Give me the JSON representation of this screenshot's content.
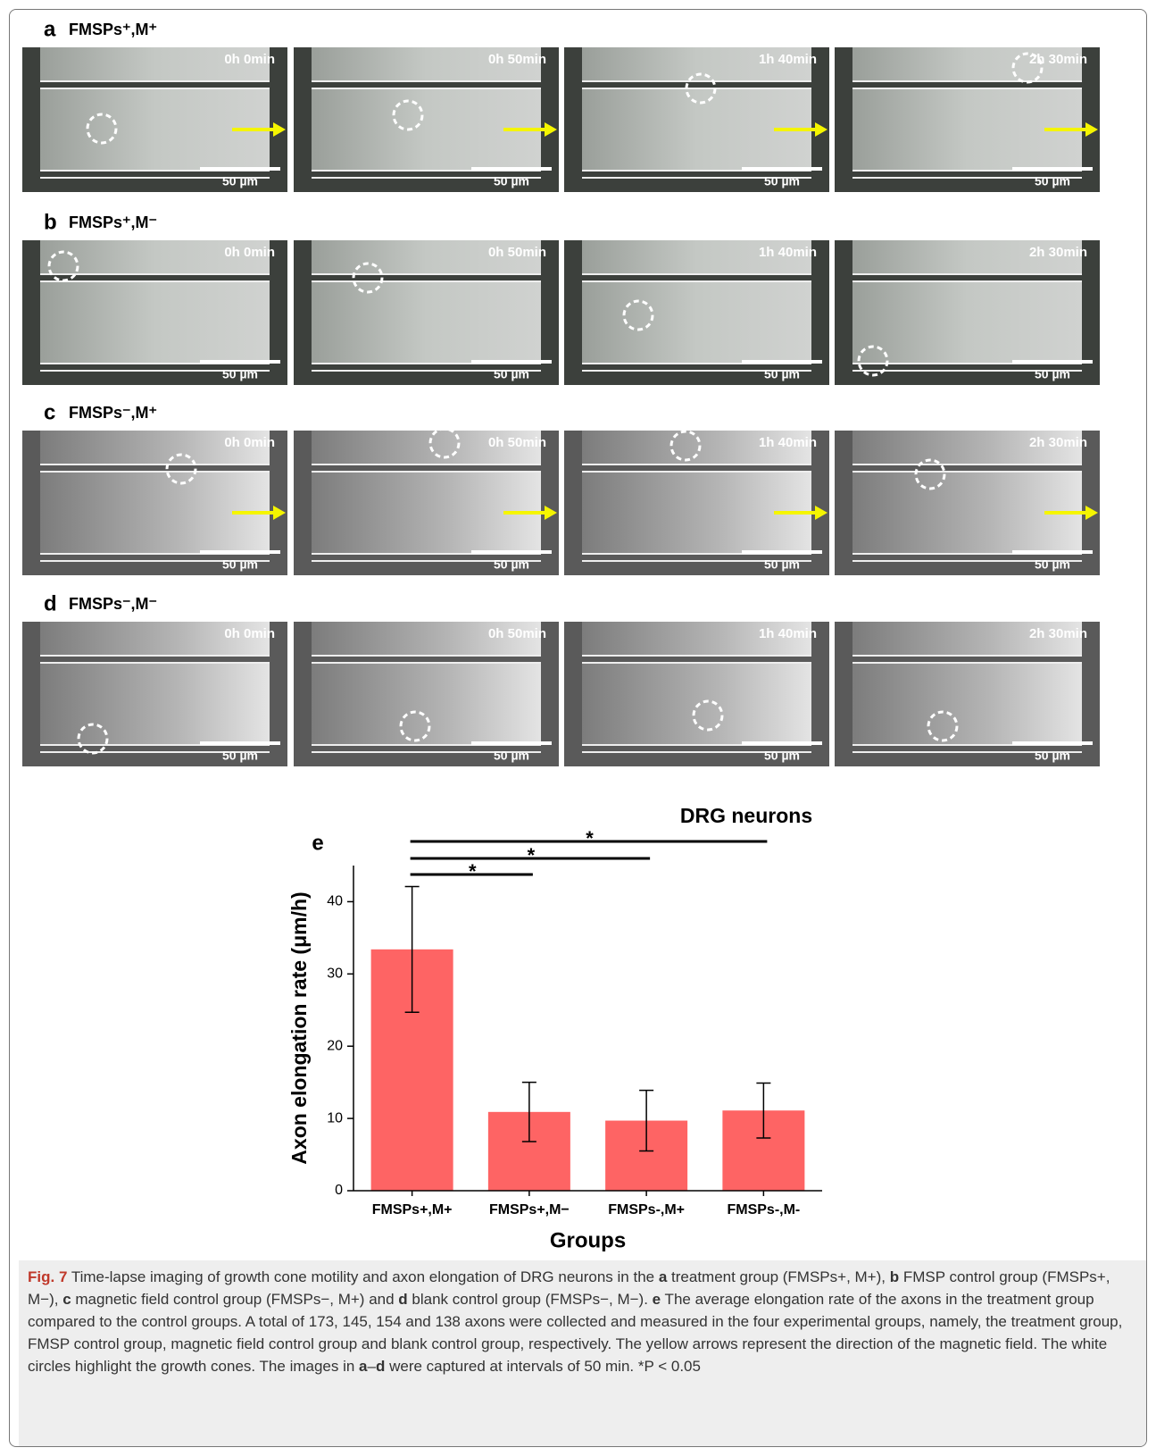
{
  "panels": [
    {
      "letter": "a",
      "title": "FMSPs⁺,M⁺",
      "arrow": true,
      "fluorescent": true
    },
    {
      "letter": "b",
      "title": "FMSPs⁺,M⁻",
      "arrow": false,
      "fluorescent": true
    },
    {
      "letter": "c",
      "title": "FMSPs⁻,M⁺",
      "arrow": true,
      "fluorescent": false
    },
    {
      "letter": "d",
      "title": "FMSPs⁻,M⁻",
      "arrow": false,
      "fluorescent": false
    }
  ],
  "frames": [
    "0h 0min",
    "0h 50min",
    "1h 40min",
    "2h 30min"
  ],
  "scale_bar": "50 µm",
  "chart_data": {
    "type": "bar",
    "panel_letter": "e",
    "title": "DRG neurons",
    "x_label": "Groups",
    "y_label": "Axon elongation rate (μm/h)",
    "categories": [
      "FMSPs+,M+",
      "FMSPs+,M−",
      "FMSPs-,M+",
      "FMSPs-,M-"
    ],
    "values": [
      33.4,
      10.9,
      9.7,
      11.1
    ],
    "errors": [
      8.7,
      4.1,
      4.2,
      3.8
    ],
    "color": "#fe6464",
    "ylim": [
      0,
      45
    ],
    "yticks": [
      0,
      10,
      20,
      30,
      40
    ],
    "annotations": [
      "*",
      "*",
      "*"
    ]
  },
  "caption": {
    "label": "Fig. 7",
    "segments": [
      {
        "text": " Time-lapse imaging of growth cone motility and axon elongation of DRG neurons in the "
      },
      {
        "text": "a",
        "bold": true
      },
      {
        "text": " treatment group (FMSPs+, M+), "
      },
      {
        "text": "b",
        "bold": true
      },
      {
        "text": " FMSP control group (FMSPs+, M−), "
      },
      {
        "text": "c",
        "bold": true
      },
      {
        "text": " magnetic field control group (FMSPs−, M+) and "
      },
      {
        "text": "d",
        "bold": true
      },
      {
        "text": " blank control group (FMSPs−, M−). "
      },
      {
        "text": "e",
        "bold": true
      },
      {
        "text": " The average elongation rate of the axons in the treatment group compared to the control groups. A total of 173, 145, 154 and 138 axons were collected and measured in the four experimental groups, namely, the treatment group, FMSP control group, magnetic field control group and blank control group, respectively. The yellow arrows represent the direction of the magnetic field. The white circles highlight the growth cones. The images in "
      },
      {
        "text": "a",
        "bold": true
      },
      {
        "text": "–"
      },
      {
        "text": "d",
        "bold": true
      },
      {
        "text": " were captured at intervals of 50 min. *P < 0.05"
      }
    ]
  }
}
